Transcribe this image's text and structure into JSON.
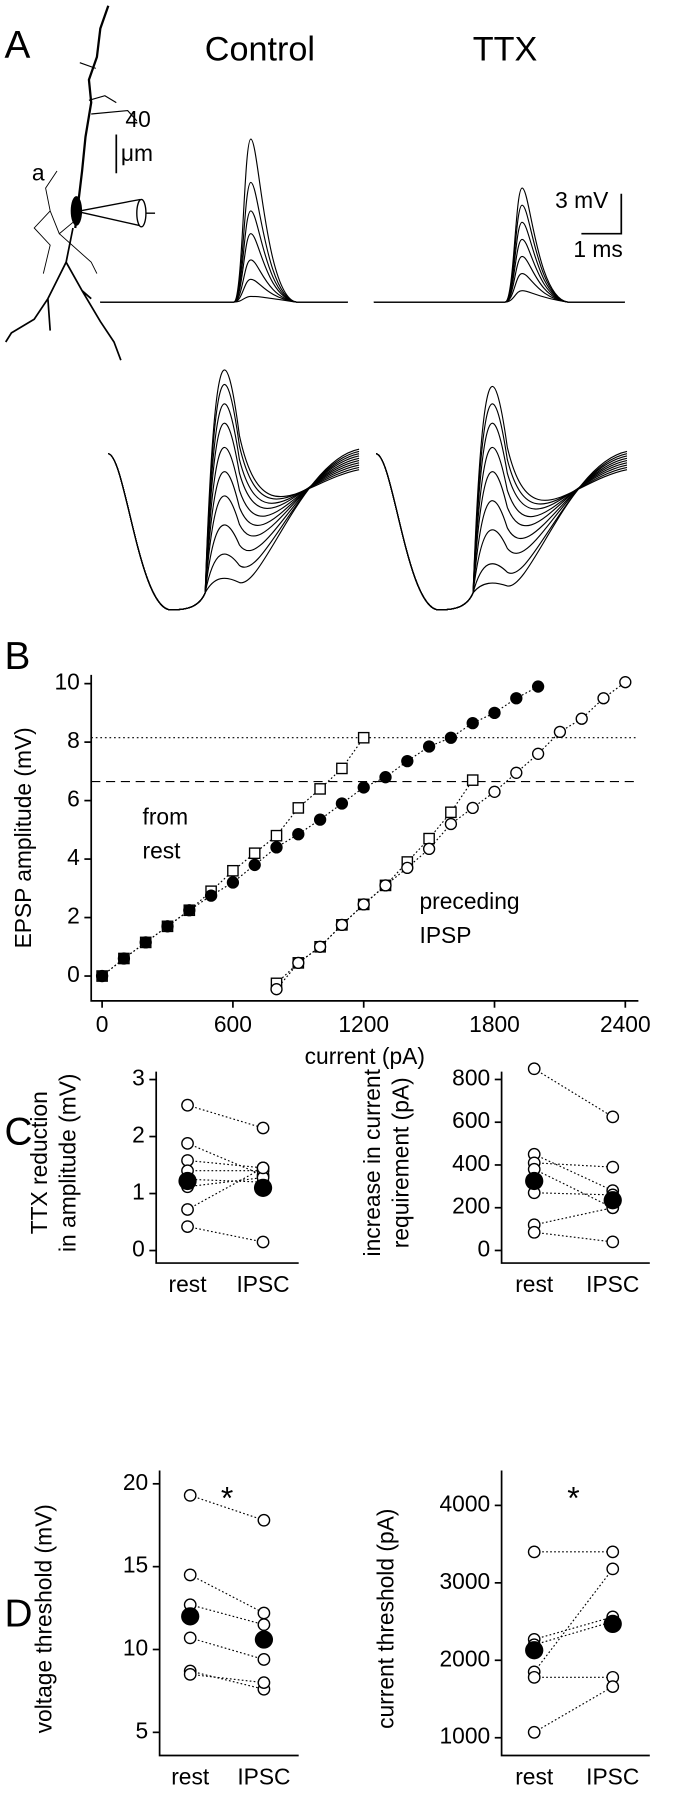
{
  "panel_a": {
    "label": "A",
    "columns": [
      "Control",
      "TTX"
    ],
    "scale_length": "40",
    "scale_unit": "μm",
    "axon_label": "a",
    "voltage_scale": "3 mV",
    "time_scale": "1 ms"
  },
  "chart_data": [
    {
      "panel": "B",
      "type": "line",
      "xlabel": "current (pA)",
      "ylabel": "EPSP amplitude (mV)",
      "xlim": [
        -50,
        2460
      ],
      "ylim": [
        -0.85,
        10.3
      ],
      "xticks": [
        0,
        600,
        1200,
        1800,
        2400
      ],
      "yticks": [
        0,
        2,
        4,
        6,
        8,
        10
      ],
      "annotations": [
        [
          "from",
          "rest"
        ],
        [
          "preceding",
          "IPSP"
        ]
      ],
      "hlines": [
        {
          "value": 8.15,
          "style": "dotted"
        },
        {
          "value": 6.65,
          "style": "dashed"
        }
      ],
      "series": [
        {
          "color": "#000000",
          "marker": "square",
          "filled": false,
          "x": [
            0,
            100,
            200,
            300,
            400,
            500,
            600,
            700,
            800,
            900,
            1000,
            1100,
            1200
          ],
          "values": [
            0,
            0.6,
            1.15,
            1.7,
            2.25,
            2.9,
            3.6,
            4.2,
            4.8,
            5.75,
            6.4,
            7.1,
            8.15
          ]
        },
        {
          "color": "#000000",
          "marker": "circle",
          "filled": true,
          "x": [
            0,
            100,
            200,
            300,
            400,
            500,
            600,
            700,
            800,
            900,
            1000,
            1100,
            1200,
            1300,
            1400,
            1500,
            1600,
            1700,
            1800,
            1900,
            2000
          ],
          "values": [
            0,
            0.6,
            1.15,
            1.7,
            2.25,
            2.75,
            3.2,
            3.8,
            4.4,
            4.85,
            5.35,
            5.9,
            6.45,
            6.8,
            7.35,
            7.85,
            8.15,
            8.65,
            9.0,
            9.5,
            9.9
          ]
        },
        {
          "color": "#000000",
          "marker": "square",
          "filled": false,
          "x": [
            800,
            900,
            1000,
            1100,
            1200,
            1300,
            1400,
            1500,
            1600,
            1700
          ],
          "values": [
            -0.25,
            0.45,
            1.0,
            1.75,
            2.45,
            3.1,
            3.9,
            4.7,
            5.6,
            6.7
          ]
        },
        {
          "color": "#000000",
          "marker": "circle",
          "filled": false,
          "x": [
            800,
            900,
            1000,
            1100,
            1200,
            1300,
            1400,
            1500,
            1600,
            1700,
            1800,
            1900,
            2000,
            2100,
            2200,
            2300,
            2400
          ],
          "values": [
            -0.45,
            0.45,
            1.0,
            1.75,
            2.45,
            3.1,
            3.7,
            4.35,
            5.2,
            5.75,
            6.3,
            6.95,
            7.6,
            8.35,
            8.8,
            9.5,
            10.05
          ]
        }
      ]
    },
    {
      "panel": "C",
      "type": "paired",
      "categories": [
        "rest",
        "IPSC"
      ],
      "ylabel": [
        "TTX reduction",
        "in amplitude (mV)"
      ],
      "ylim": [
        -0.22,
        3.14
      ],
      "yticks": [
        0,
        1,
        2,
        3
      ],
      "series": [
        {
          "values": [
            2.55,
            2.15
          ]
        },
        {
          "values": [
            1.88,
            1.32
          ]
        },
        {
          "values": [
            1.58,
            1.45
          ]
        },
        {
          "values": [
            1.4,
            1.4
          ]
        },
        {
          "values": [
            1.25,
            1.2
          ]
        },
        {
          "values": [
            1.12,
            1.28
          ]
        },
        {
          "values": [
            0.72,
            1.45
          ]
        },
        {
          "values": [
            0.42,
            0.15
          ]
        }
      ],
      "mean": [
        1.22,
        1.1
      ]
    },
    {
      "type": "paired",
      "categories": [
        "rest",
        "IPSC"
      ],
      "ylabel": [
        "increase in current",
        "requirement (pA)"
      ],
      "ylim": [
        -59,
        837
      ],
      "yticks": [
        0,
        200,
        400,
        600,
        800
      ],
      "series": [
        {
          "values": [
            850,
            625
          ]
        },
        {
          "values": [
            450,
            280
          ]
        },
        {
          "values": [
            410,
            390
          ]
        },
        {
          "values": [
            380,
            200
          ]
        },
        {
          "values": [
            270,
            260
          ]
        },
        {
          "values": [
            120,
            200
          ]
        },
        {
          "values": [
            85,
            40
          ]
        }
      ],
      "mean": [
        325,
        235
      ]
    },
    {
      "panel": "D",
      "type": "paired",
      "categories": [
        "rest",
        "IPSC"
      ],
      "ylabel": [
        "voltage threshold (mV)"
      ],
      "annotation": "*",
      "ylim": [
        3.6,
        20.8
      ],
      "yticks": [
        5,
        10,
        15,
        20
      ],
      "series": [
        {
          "values": [
            19.3,
            17.8
          ]
        },
        {
          "values": [
            14.5,
            12.2
          ]
        },
        {
          "values": [
            12.7,
            11.5
          ]
        },
        {
          "values": [
            10.7,
            9.4
          ]
        },
        {
          "values": [
            8.7,
            7.6
          ]
        },
        {
          "values": [
            8.5,
            8.0
          ]
        }
      ],
      "mean": [
        12.0,
        10.6
      ]
    },
    {
      "type": "paired",
      "categories": [
        "rest",
        "IPSC"
      ],
      "ylabel": [
        "current threshold (pA)"
      ],
      "annotation": "*",
      "ylim": [
        770,
        4450
      ],
      "yticks": [
        1000,
        2000,
        3000,
        4000
      ],
      "series": [
        {
          "values": [
            3400,
            3400
          ]
        },
        {
          "values": [
            2270,
            2560
          ]
        },
        {
          "values": [
            2200,
            2500
          ]
        },
        {
          "values": [
            1850,
            3180
          ]
        },
        {
          "values": [
            1780,
            1780
          ]
        },
        {
          "values": [
            1070,
            1660
          ]
        }
      ],
      "mean": [
        2130,
        2470
      ]
    }
  ]
}
